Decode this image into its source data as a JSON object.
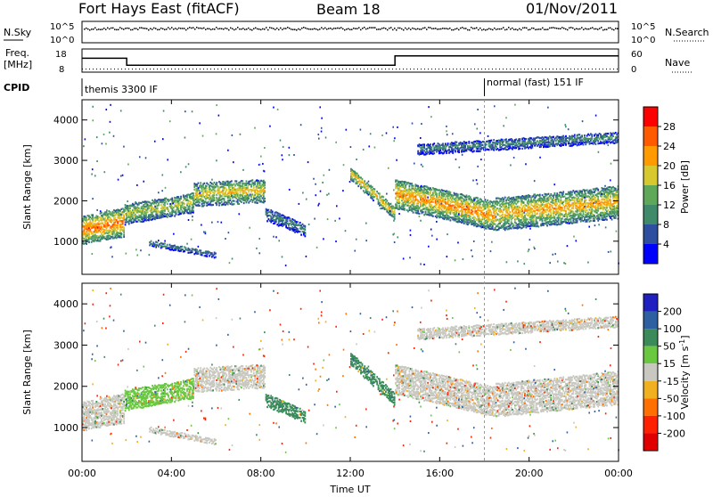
{
  "header": {
    "station": "Fort Hays East (fitACF)",
    "beam": "Beam 18",
    "date": "01/Nov/2011"
  },
  "noise_panel": {
    "left_label": "N.Sky",
    "left_ticks": [
      "10^5",
      "10^0"
    ],
    "right_label": "N.Search",
    "right_ticks": [
      "10^5",
      "10^0"
    ]
  },
  "freq_panel": {
    "left_label_1": "Freq.",
    "left_label_2": "[MHz]",
    "left_ticks": [
      "18",
      "8"
    ],
    "right_label": "Nave",
    "right_ticks": [
      "60",
      "0"
    ]
  },
  "cpid_panel": {
    "label": "CPID",
    "modes": [
      "themis 3300 IF",
      "normal (fast) 151 IF"
    ]
  },
  "power_panel": {
    "ylabel": "Slant Range [km]",
    "yticks": [
      "1000",
      "2000",
      "3000",
      "4000"
    ],
    "colorbar_label": "Power [dB]",
    "colorbar_ticks": [
      "4",
      "8",
      "12",
      "16",
      "20",
      "24",
      "28"
    ],
    "colors": [
      "#0000ff",
      "#2e4fa0",
      "#3e8a6a",
      "#5fa85a",
      "#d8c830",
      "#ff9a00",
      "#ff5a00",
      "#ff0000"
    ]
  },
  "velocity_panel": {
    "ylabel": "Slant Range [km]",
    "yticks": [
      "1000",
      "2000",
      "3000",
      "4000"
    ],
    "colorbar_label": "Velocity [m s^-1]",
    "colorbar_ticks": [
      "200",
      "100",
      "50",
      "15",
      "-15",
      "-50",
      "-100",
      "-200"
    ],
    "colors": [
      "#2020c0",
      "#2e5fa0",
      "#3a8a5a",
      "#6ac840",
      "#c8c8c0",
      "#f0b020",
      "#ff7000",
      "#ff2000",
      "#e00000"
    ]
  },
  "xaxis": {
    "label": "Time UT",
    "ticks": [
      "00:00",
      "04:00",
      "08:00",
      "12:00",
      "16:00",
      "20:00",
      "00:00"
    ]
  },
  "chart_data": {
    "type": "heatmap",
    "x_range_hours": [
      0,
      24
    ],
    "y_range_km": [
      180,
      4500
    ],
    "frequency_segments_mhz": [
      {
        "start_hour": 0.0,
        "end_hour": 2.0,
        "value": 14
      },
      {
        "start_hour": 2.0,
        "end_hour": 14.0,
        "value": 11
      },
      {
        "start_hour": 14.0,
        "end_hour": 24.0,
        "value": 15
      }
    ],
    "nave_level": 8,
    "cpid_change_hour": 18.0,
    "echo_regions": [
      {
        "start_hour": 0.0,
        "end_hour": 1.9,
        "center_km": [
          1300,
          1500
        ],
        "width_km": 700,
        "power_db": 26,
        "velocity": -15
      },
      {
        "start_hour": 1.9,
        "end_hour": 5.0,
        "center_km": [
          1700,
          2000
        ],
        "width_km": 500,
        "power_db": 18,
        "velocity": 15
      },
      {
        "start_hour": 5.0,
        "end_hour": 8.2,
        "center_km": [
          2200,
          2300
        ],
        "width_km": 600,
        "power_db": 20,
        "velocity": -15
      },
      {
        "start_hour": 8.2,
        "end_hour": 10.0,
        "center_km": [
          1700,
          1300
        ],
        "width_km": 300,
        "power_db": 10,
        "velocity": 50
      },
      {
        "start_hour": 12.0,
        "end_hour": 14.0,
        "center_km": [
          2700,
          1700
        ],
        "width_km": 300,
        "power_db": 22,
        "velocity": 50
      },
      {
        "start_hour": 14.0,
        "end_hour": 18.5,
        "center_km": [
          2200,
          1650
        ],
        "width_km": 700,
        "power_db": 24,
        "velocity": -15
      },
      {
        "start_hour": 18.5,
        "end_hour": 24.0,
        "center_km": [
          1700,
          2000
        ],
        "width_km": 800,
        "power_db": 22,
        "velocity": -15
      },
      {
        "start_hour": 15.0,
        "end_hour": 24.0,
        "center_km": [
          3300,
          3600
        ],
        "width_km": 250,
        "power_db": 10,
        "velocity": -15
      },
      {
        "start_hour": 3.0,
        "end_hour": 6.0,
        "center_km": [
          1000,
          700
        ],
        "width_km": 150,
        "power_db": 10,
        "velocity": -15
      }
    ]
  }
}
